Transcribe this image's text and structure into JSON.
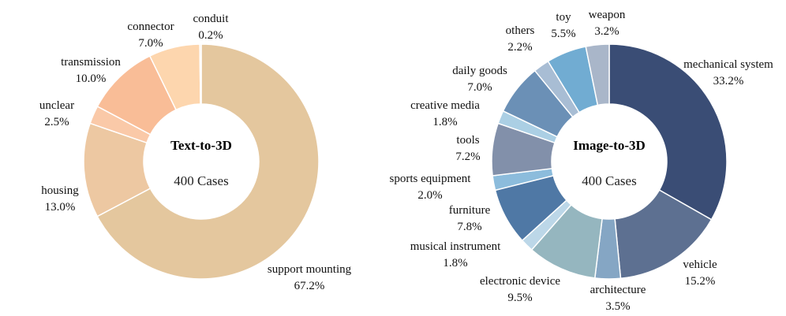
{
  "chart_data": [
    {
      "type": "donut",
      "center_title": "Text-to-3D",
      "center_subtitle": "400 Cases",
      "slices": [
        {
          "label": "support mounting",
          "value": 67.2,
          "pct": "67.2%",
          "color": "#e4c79e"
        },
        {
          "label": "housing",
          "value": 13.0,
          "pct": "13.0%",
          "color": "#edc8a2"
        },
        {
          "label": "unclear",
          "value": 2.5,
          "pct": "2.5%",
          "color": "#fac9a8"
        },
        {
          "label": "transmission",
          "value": 10.0,
          "pct": "10.0%",
          "color": "#f9bd97"
        },
        {
          "label": "connector",
          "value": 7.0,
          "pct": "7.0%",
          "color": "#fdd6ae"
        },
        {
          "label": "conduit",
          "value": 0.2,
          "pct": "0.2%",
          "color": "#f3e0c8"
        }
      ]
    },
    {
      "type": "donut",
      "center_title": "Image-to-3D",
      "center_subtitle": "400 Cases",
      "slices": [
        {
          "label": "mechanical system",
          "value": 33.2,
          "pct": "33.2%",
          "color": "#3a4d75"
        },
        {
          "label": "vehicle",
          "value": 15.2,
          "pct": "15.2%",
          "color": "#5d7091"
        },
        {
          "label": "architecture",
          "value": 3.5,
          "pct": "3.5%",
          "color": "#85a6c4"
        },
        {
          "label": "electronic device",
          "value": 9.5,
          "pct": "9.5%",
          "color": "#95b6bf"
        },
        {
          "label": "musical instrument",
          "value": 1.8,
          "pct": "1.8%",
          "color": "#bcd7e8"
        },
        {
          "label": "furniture",
          "value": 7.8,
          "pct": "7.8%",
          "color": "#4f78a5"
        },
        {
          "label": "sports equipment",
          "value": 2.0,
          "pct": "2.0%",
          "color": "#8cbcdc"
        },
        {
          "label": "tools",
          "value": 7.2,
          "pct": "7.2%",
          "color": "#8290aa"
        },
        {
          "label": "creative media",
          "value": 1.8,
          "pct": "1.8%",
          "color": "#abcfe4"
        },
        {
          "label": "daily goods",
          "value": 7.0,
          "pct": "7.0%",
          "color": "#6b90b6"
        },
        {
          "label": "others",
          "value": 2.2,
          "pct": "2.2%",
          "color": "#a8bdd4"
        },
        {
          "label": "toy",
          "value": 5.5,
          "pct": "5.5%",
          "color": "#71acd2"
        },
        {
          "label": "weapon",
          "value": 3.2,
          "pct": "3.2%",
          "color": "#a9b6c9"
        }
      ]
    }
  ]
}
